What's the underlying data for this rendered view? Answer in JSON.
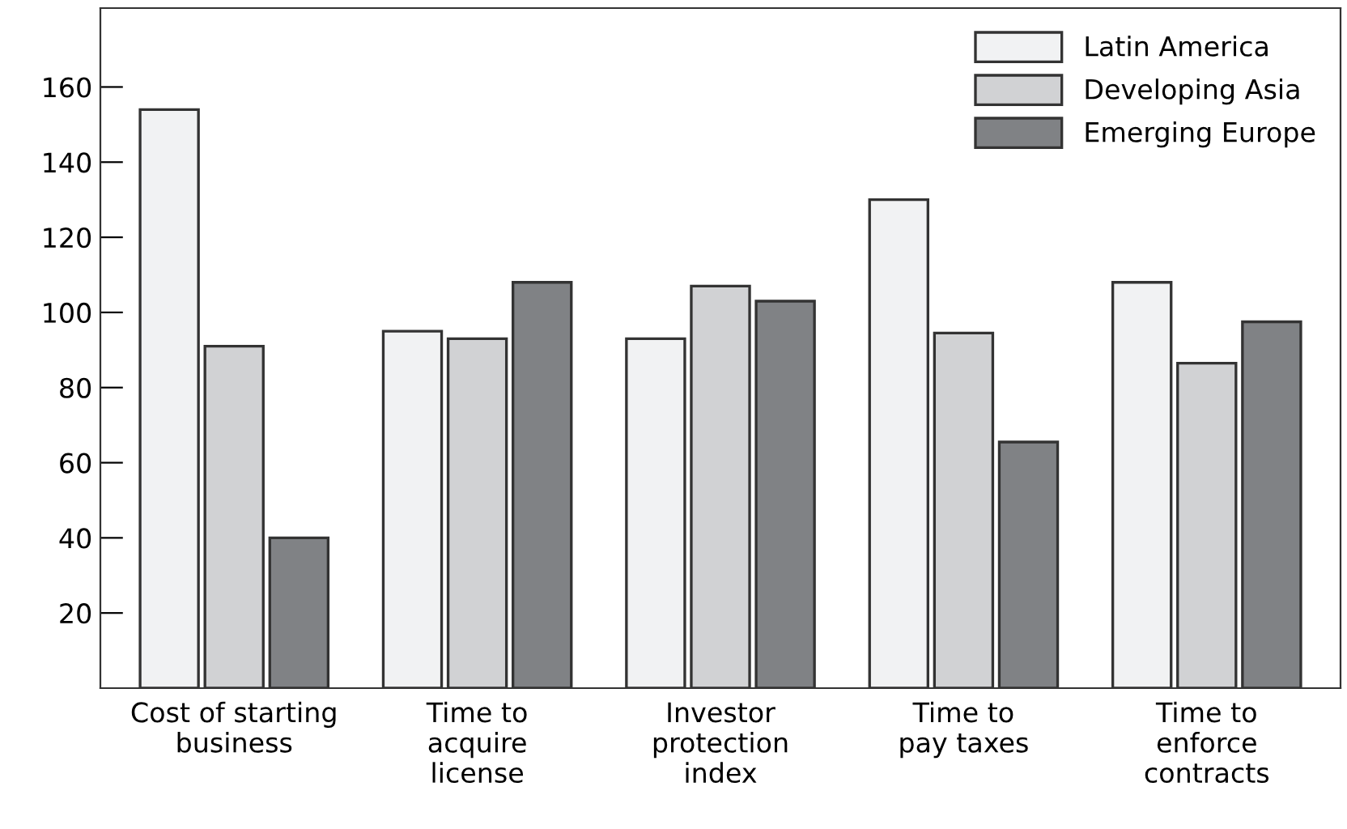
{
  "chart_data": {
    "type": "bar",
    "categories": [
      "Cost of starting\nbusiness",
      "Time to\nacquire\nlicense",
      "Investor\nprotection\nindex",
      "Time to\npay taxes",
      "Time to\nenforce\ncontracts"
    ],
    "series": [
      {
        "name": "Latin America",
        "color": "#f1f2f3",
        "values": [
          154,
          95,
          93,
          130,
          108
        ]
      },
      {
        "name": "Developing Asia",
        "color": "#d1d2d4",
        "values": [
          91,
          93,
          107,
          94.5,
          86.5
        ]
      },
      {
        "name": "Emerging Europe",
        "color": "#808285",
        "values": [
          40,
          108,
          103,
          65.5,
          97.5
        ]
      }
    ],
    "ylim": [
      0,
      181
    ],
    "yticks": [
      20,
      40,
      60,
      80,
      100,
      120,
      140,
      160
    ],
    "grid": false,
    "legend": "top right"
  }
}
